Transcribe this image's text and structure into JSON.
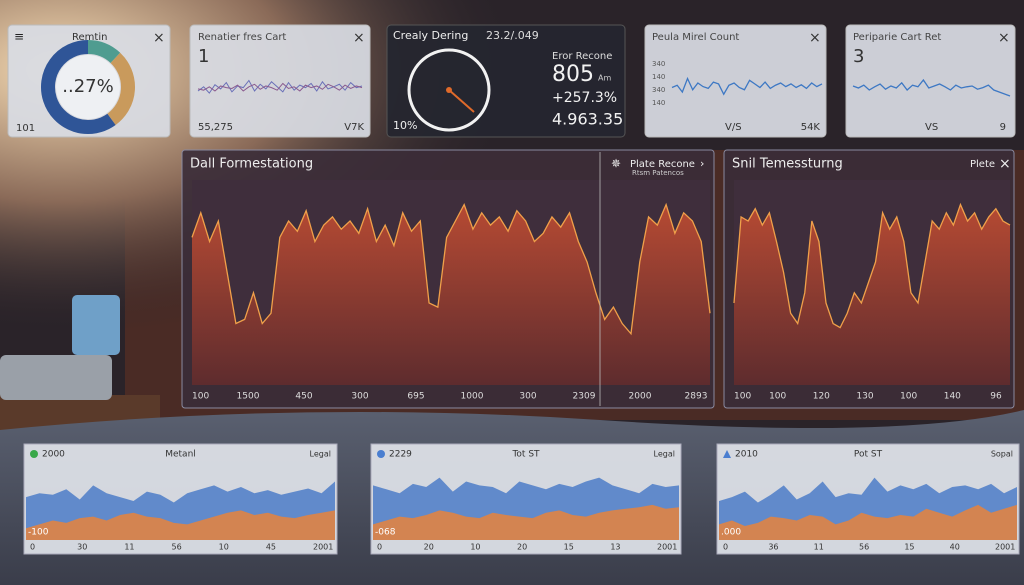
{
  "cards": [
    {
      "title": "Remtin",
      "center": "..27%",
      "foot": "101",
      "segments": [
        {
          "color": "#4f9c90",
          "value": 12
        },
        {
          "color": "#c99a5c",
          "value": 28
        },
        {
          "color": "#2f5597",
          "value": 60
        }
      ]
    },
    {
      "title": "Renatier fres Cart",
      "value": "1",
      "foot_left": "55,275",
      "foot_right": "V7K",
      "ylim": [
        0,
        100
      ],
      "series": [
        {
          "color": "#6a70b8",
          "values": [
            50,
            60,
            45,
            65,
            55,
            70,
            48,
            62,
            58,
            75,
            50,
            66,
            55,
            72,
            60,
            48,
            70,
            52,
            64,
            58,
            68,
            50,
            72,
            55,
            60,
            66,
            52,
            70,
            58,
            62
          ]
        },
        {
          "color": "#8a5a8e",
          "values": [
            55,
            52,
            60,
            50,
            62,
            58,
            56,
            64,
            50,
            60,
            66,
            54,
            62,
            58,
            52,
            68,
            56,
            60,
            50,
            64,
            58,
            62,
            54,
            66,
            60,
            52,
            64,
            56,
            62,
            58
          ]
        }
      ]
    },
    {
      "title": "Crealy Dering",
      "date": "23.2/.049",
      "gauge_label": "10%",
      "kpi_title": "Eror Recone",
      "kpi_value": "805",
      "kpi_unit": "Am",
      "change": "+257.3%",
      "total": "4.963.35"
    },
    {
      "title": "Peula Mirel Count",
      "ylabels": [
        "340",
        "140",
        "340",
        "140"
      ],
      "foot_left": "V/S",
      "foot_right": "54K",
      "ylim": [
        0,
        100
      ],
      "series": [
        {
          "color": "#3d78c4",
          "values": [
            50,
            55,
            40,
            70,
            45,
            60,
            52,
            48,
            62,
            58,
            35,
            55,
            60,
            50,
            45,
            66,
            58,
            50,
            62,
            48,
            55,
            60,
            52,
            58,
            50,
            56,
            48,
            60,
            52,
            58
          ]
        }
      ]
    },
    {
      "title": "Periparie Cart Ret",
      "value": "3",
      "foot_left": "VS",
      "foot_right": "9",
      "ylim": [
        0,
        100
      ],
      "series": [
        {
          "color": "#3d78c4",
          "values": [
            60,
            55,
            62,
            50,
            58,
            65,
            52,
            60,
            55,
            68,
            50,
            62,
            58,
            75,
            55,
            60,
            65,
            58,
            50,
            62,
            55,
            58,
            60,
            52,
            56,
            62,
            50,
            45,
            40,
            35
          ]
        }
      ]
    }
  ],
  "panels": [
    {
      "title": "Dall Formestationg",
      "legend_title": "Plate Recone",
      "legend_sub": "Rtsm Patencos",
      "xlabels": [
        "100",
        "1500",
        "450",
        "300",
        "695",
        "1000",
        "300",
        "2309",
        "2000",
        "2893"
      ],
      "ylim": [
        0,
        100
      ],
      "values": [
        72,
        84,
        70,
        80,
        55,
        30,
        32,
        45,
        30,
        35,
        72,
        80,
        75,
        85,
        70,
        78,
        82,
        76,
        80,
        74,
        86,
        70,
        78,
        68,
        84,
        75,
        80,
        40,
        38,
        72,
        80,
        88,
        76,
        84,
        78,
        82,
        75,
        85,
        80,
        70,
        74,
        82,
        77,
        84,
        70,
        60,
        45,
        32,
        38,
        30,
        25,
        60,
        82,
        78,
        88,
        74,
        84,
        80,
        70,
        35
      ]
    },
    {
      "title": "Snil Temessturng",
      "action": "Plete",
      "xlabels": [
        "100",
        "100",
        "120",
        "130",
        "100",
        "140",
        "96"
      ],
      "ylim": [
        0,
        100
      ],
      "values": [
        40,
        82,
        80,
        86,
        78,
        84,
        70,
        55,
        35,
        30,
        45,
        80,
        70,
        40,
        30,
        28,
        35,
        45,
        40,
        50,
        60,
        84,
        76,
        82,
        70,
        45,
        40,
        60,
        80,
        76,
        84,
        78,
        88,
        80,
        84,
        76,
        82,
        86,
        80,
        78
      ]
    }
  ],
  "minis": [
    {
      "legend": "2000",
      "title": "Metanl",
      "tag": "Legal",
      "corner": "-100",
      "xlabels": [
        "0",
        "30",
        "11",
        "56",
        "10",
        "45",
        "2001"
      ],
      "ylim": [
        0,
        100
      ],
      "series": [
        {
          "color": "#5b86c9",
          "values": [
            55,
            60,
            58,
            65,
            52,
            70,
            60,
            55,
            50,
            62,
            58,
            48,
            60,
            65,
            70,
            62,
            68,
            60,
            64,
            58,
            62,
            66,
            60,
            75
          ]
        },
        {
          "color": "#d9844a",
          "values": [
            15,
            20,
            25,
            22,
            28,
            30,
            25,
            32,
            35,
            30,
            28,
            22,
            20,
            25,
            30,
            35,
            38,
            32,
            35,
            30,
            28,
            32,
            35,
            38
          ]
        }
      ]
    },
    {
      "legend": "2229",
      "title": "Tot ST",
      "tag": "Legal",
      "corner": "-068",
      "xlabels": [
        "0",
        "20",
        "10",
        "20",
        "15",
        "13",
        "2001"
      ],
      "ylim": [
        0,
        100
      ],
      "series": [
        {
          "color": "#5b86c9",
          "values": [
            70,
            65,
            60,
            72,
            68,
            80,
            62,
            75,
            70,
            68,
            60,
            75,
            70,
            65,
            72,
            68,
            75,
            80,
            70,
            65,
            60,
            72,
            68,
            70
          ]
        },
        {
          "color": "#d9844a",
          "values": [
            20,
            25,
            30,
            28,
            32,
            38,
            35,
            30,
            28,
            35,
            32,
            30,
            28,
            35,
            38,
            32,
            30,
            35,
            38,
            40,
            42,
            45,
            40,
            42
          ]
        }
      ]
    },
    {
      "legend": "2010",
      "title": "Pot ST",
      "tag": "Sopal",
      "corner": ".000",
      "xlabels": [
        "0",
        "36",
        "11",
        "56",
        "15",
        "40",
        "2001"
      ],
      "ylim": [
        0,
        100
      ],
      "series": [
        {
          "color": "#5b86c9",
          "values": [
            50,
            55,
            62,
            48,
            58,
            70,
            52,
            60,
            75,
            55,
            60,
            58,
            80,
            62,
            70,
            65,
            72,
            60,
            68,
            70,
            65,
            72,
            60,
            68
          ]
        },
        {
          "color": "#d9844a",
          "values": [
            20,
            25,
            18,
            22,
            30,
            28,
            25,
            32,
            30,
            20,
            25,
            35,
            30,
            28,
            32,
            30,
            40,
            35,
            30,
            38,
            45,
            35,
            40,
            45
          ]
        }
      ]
    }
  ]
}
